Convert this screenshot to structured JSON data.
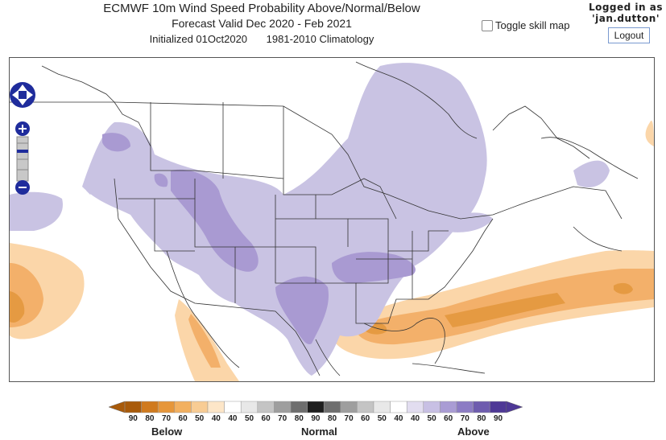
{
  "header": {
    "title_line1": "ECMWF 10m Wind Speed Probability Above/Normal/Below",
    "title_line2": "Forecast Valid Dec 2020 - Feb 2021",
    "initialized": "Initialized 01Oct2020",
    "climatology": "1981-2010 Climatology"
  },
  "toggle_skill_label": "Toggle skill map",
  "user": {
    "line1": "Logged in as",
    "line2": "'jan.dutton'",
    "logout_label": "Logout"
  },
  "legend": {
    "below_label": "Below",
    "normal_label": "Normal",
    "above_label": "Above",
    "below_values": [
      "90",
      "80",
      "70",
      "60",
      "50",
      "40"
    ],
    "normal_values": [
      "40",
      "50",
      "60",
      "70",
      "80",
      "90",
      "80",
      "70",
      "60",
      "50",
      "40"
    ],
    "above_values": [
      "40",
      "50",
      "60",
      "70",
      "80",
      "90"
    ],
    "below_colors": [
      "#a85a0a",
      "#d07a1e",
      "#e6963a",
      "#f2b060",
      "#f8cc94",
      "#fde6c8"
    ],
    "normal_colors": [
      "#ffffff",
      "#e8e8e8",
      "#c4c4c4",
      "#9e9e9e",
      "#6e6e6e",
      "#1e1e1e",
      "#6e6e6e",
      "#9e9e9e",
      "#c4c4c4",
      "#e8e8e8",
      "#ffffff"
    ],
    "above_colors": [
      "#e2ddf0",
      "#c8c0e4",
      "#a99cd4",
      "#8c7cc4",
      "#6e5cae",
      "#4e3896"
    ]
  },
  "map_colors": {
    "above_light": "#c9c3e3",
    "above_mid": "#a99ad2",
    "below_light": "#fbd6a9",
    "below_mid": "#f3b06a",
    "below_dark": "#e59a42"
  }
}
